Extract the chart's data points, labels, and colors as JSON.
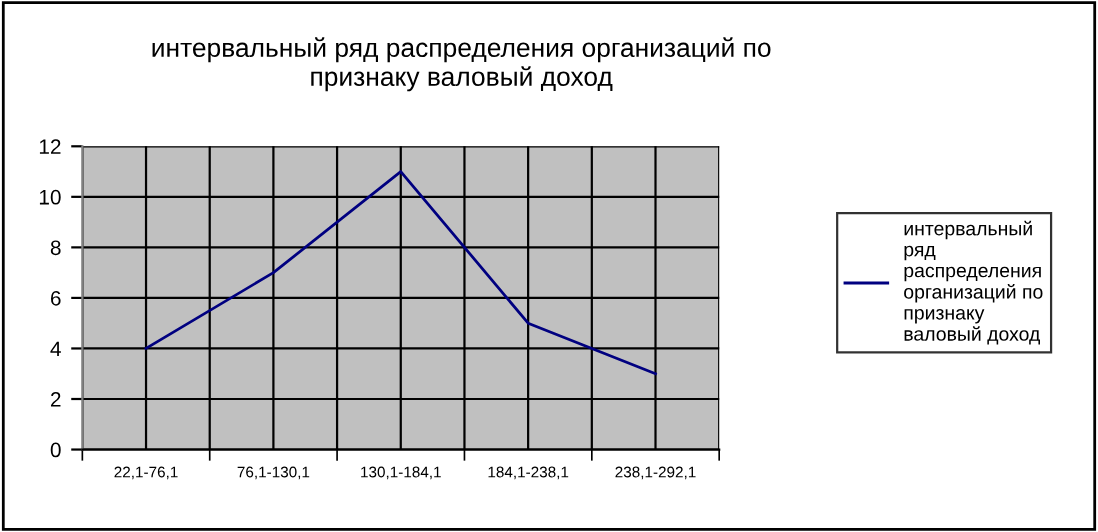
{
  "chart_data": {
    "type": "line",
    "title": "интервальный ряд распределения организаций по признаку валовый доход",
    "categories": [
      "22,1-76,1",
      "76,1-130,1",
      "130,1-184,1",
      "184,1-238,1",
      "238,1-292,1"
    ],
    "series": [
      {
        "name": "интервальный ряд распределения организаций по признаку валовый доход",
        "color": "#000080",
        "values": [
          4,
          7,
          11,
          5,
          3
        ]
      }
    ],
    "ylim": [
      0,
      12
    ],
    "yticks": [
      0,
      2,
      4,
      6,
      8,
      10,
      12
    ],
    "grid": true,
    "legend": "right",
    "marker": "none",
    "line_style": "solid"
  }
}
